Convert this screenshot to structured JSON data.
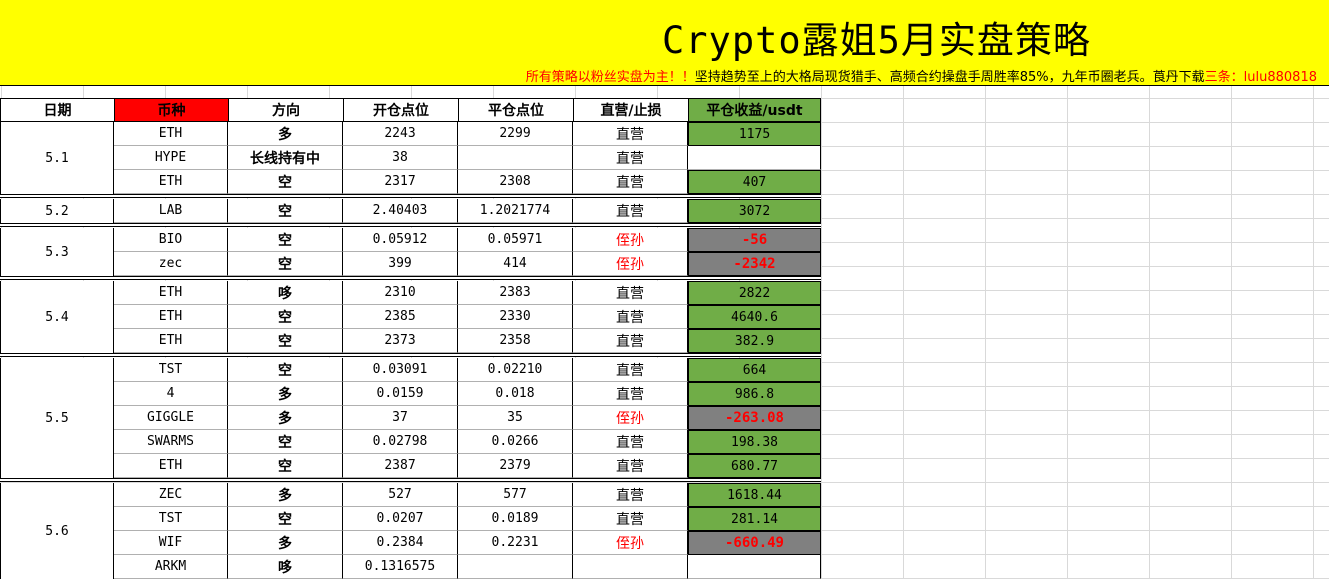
{
  "banner": {
    "title": "Crypto露姐5月实盘策略",
    "subtitle_red": "所有策略以粉丝实盘为主！！",
    "subtitle_mid": "坚持趋势至上的大格局现货猎手、高频合约操盘手周胜率85%，九年币圈老兵。莨丹下载",
    "subtitle_red2": "三条：",
    "subtitle_contact": "lulu880818",
    "color": "#ffff00"
  },
  "table": {
    "headers": [
      "日期",
      "币种",
      "方向",
      "开仓点位",
      "平仓点位",
      "直营/止损",
      "平仓收益/usdt"
    ],
    "groups": [
      {
        "date": "5.1",
        "rows": [
          {
            "coin": "ETH",
            "dir": "多",
            "open": "2243",
            "close": "2299",
            "type": "直营",
            "pnl": "1175"
          },
          {
            "coin": "HYPE",
            "dir": "长线持有中",
            "open": "38",
            "close": "",
            "type": "直营",
            "pnl": ""
          },
          {
            "coin": "ETH",
            "dir": "空",
            "open": "2317",
            "close": "2308",
            "type": "直营",
            "pnl": "407"
          }
        ]
      },
      {
        "date": "5.2",
        "rows": [
          {
            "coin": "LAB",
            "dir": "空",
            "open": "2.40403",
            "close": "1.2021774",
            "type": "直营",
            "pnl": "3072"
          }
        ]
      },
      {
        "date": "5.3",
        "rows": [
          {
            "coin": "BIO",
            "dir": "空",
            "open": "0.05912",
            "close": "0.05971",
            "type": "侄孙",
            "pnl": "-56"
          },
          {
            "coin": "zec",
            "dir": "空",
            "open": "399",
            "close": "414",
            "type": "侄孙",
            "pnl": "-2342"
          }
        ]
      },
      {
        "date": "5.4",
        "rows": [
          {
            "coin": "ETH",
            "dir": "哆",
            "open": "2310",
            "close": "2383",
            "type": "直营",
            "pnl": "2822"
          },
          {
            "coin": "ETH",
            "dir": "空",
            "open": "2385",
            "close": "2330",
            "type": "直营",
            "pnl": "4640.6"
          },
          {
            "coin": "ETH",
            "dir": "空",
            "open": "2373",
            "close": "2358",
            "type": "直营",
            "pnl": "382.9"
          }
        ]
      },
      {
        "date": "5.5",
        "rows": [
          {
            "coin": "TST",
            "dir": "空",
            "open": "0.03091",
            "close": "0.02210",
            "type": "直营",
            "pnl": "664"
          },
          {
            "coin": "4",
            "dir": "多",
            "open": "0.0159",
            "close": "0.018",
            "type": "直营",
            "pnl": "986.8"
          },
          {
            "coin": "GIGGLE",
            "dir": "多",
            "open": "37",
            "close": "35",
            "type": "侄孙",
            "pnl": "-263.08"
          },
          {
            "coin": "SWARMS",
            "dir": "空",
            "open": "0.02798",
            "close": "0.0266",
            "type": "直营",
            "pnl": "198.38"
          },
          {
            "coin": "ETH",
            "dir": "空",
            "open": "2387",
            "close": "2379",
            "type": "直营",
            "pnl": "680.77"
          }
        ]
      },
      {
        "date": "5.6",
        "rows": [
          {
            "coin": "ZEC",
            "dir": "多",
            "open": "527",
            "close": "577",
            "type": "直营",
            "pnl": "1618.44"
          },
          {
            "coin": "TST",
            "dir": "空",
            "open": "0.0207",
            "close": "0.0189",
            "type": "直营",
            "pnl": "281.14"
          },
          {
            "coin": "WIF",
            "dir": "多",
            "open": "0.2384",
            "close": "0.2231",
            "type": "侄孙",
            "pnl": "-660.49"
          },
          {
            "coin": "ARKM",
            "dir": "哆",
            "open": "0.1316575",
            "close": "",
            "type": "",
            "pnl": ""
          }
        ]
      }
    ]
  },
  "colors": {
    "header_coin_bg": "#ff0000",
    "header_pnl_bg": "#70ad47",
    "profit_bg": "#70ad47",
    "loss_bg": "#808080",
    "loss_text": "#ff0000"
  }
}
